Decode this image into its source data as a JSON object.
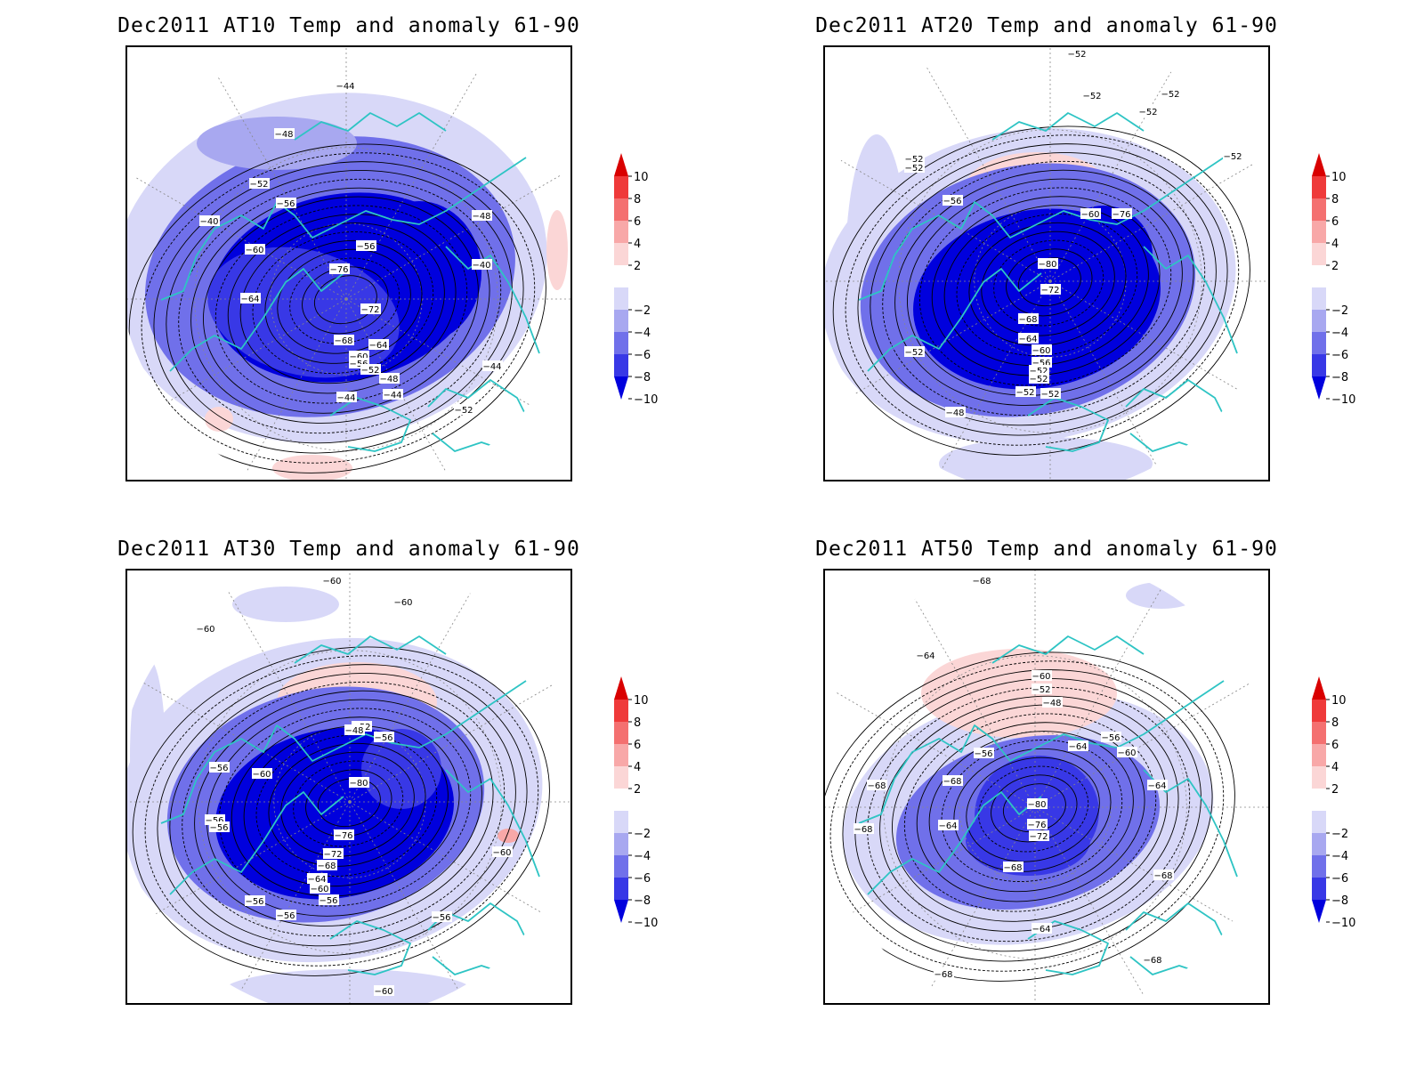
{
  "colorbar": {
    "labels": [
      "10",
      "8",
      "6",
      "4",
      "2",
      "−2",
      "−4",
      "−6",
      "−8",
      "−10"
    ],
    "colors": [
      "#d90000",
      "#ef3a3a",
      "#f47070",
      "#f8a8a8",
      "#fbd6d6",
      "#ffffff",
      "#d8d8f8",
      "#a8a8f0",
      "#7070ea",
      "#3838e6",
      "#0000dd"
    ]
  },
  "palette": {
    "frame": "#000000",
    "coast": "#2ec4c4",
    "contour": "#000000",
    "graticule": "#888888"
  },
  "panels": [
    {
      "title": "Dec2011 AT10 Temp and anomaly 61-90",
      "contour_labels": [
        "−44",
        "−48",
        "−52",
        "−56",
        "−60",
        "−64",
        "−76",
        "−72",
        "−68",
        "−64",
        "−60",
        "−56",
        "−52",
        "−48",
        "−44",
        "−44",
        "−40",
        "−44",
        "−40",
        "−48",
        "−52",
        "−56"
      ]
    },
    {
      "title": "Dec2011 AT20 Temp and anomaly 61-90",
      "contour_labels": [
        "−52",
        "−52",
        "−52",
        "−52",
        "−52",
        "−52",
        "−56",
        "−60",
        "−80",
        "−76",
        "−72",
        "−68",
        "−64",
        "−60",
        "−56",
        "−52",
        "−52",
        "−52",
        "−52",
        "−52",
        "−48",
        "−52"
      ]
    },
    {
      "title": "Dec2011 AT30 Temp and anomaly 61-90",
      "contour_labels": [
        "−60",
        "−60",
        "−60",
        "−56",
        "−60",
        "−52",
        "−48",
        "−56",
        "−80",
        "−76",
        "−72",
        "−68",
        "−64",
        "−60",
        "−56",
        "−56",
        "−56",
        "−56",
        "−56",
        "−60",
        "−56",
        "−60"
      ]
    },
    {
      "title": "Dec2011 AT50 Temp and anomaly 61-90",
      "contour_labels": [
        "−68",
        "−64",
        "−60",
        "−52",
        "−48",
        "−68",
        "−56",
        "−56",
        "−64",
        "−60",
        "−80",
        "−76",
        "−72",
        "−68",
        "−64",
        "−64",
        "−68",
        "−68",
        "−68",
        "−68",
        "−68",
        "−64"
      ]
    }
  ]
}
